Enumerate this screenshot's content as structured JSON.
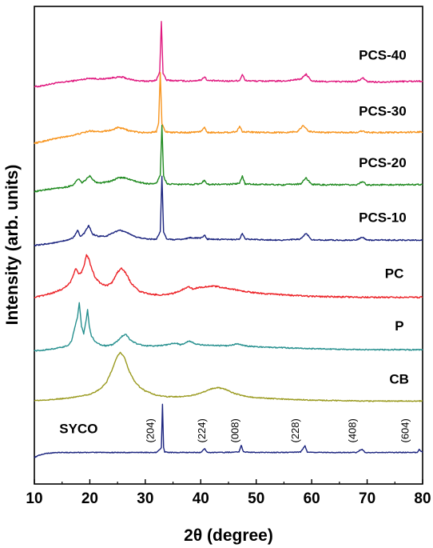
{
  "chart_data": {
    "type": "line",
    "title": "",
    "xlabel": "2θ (degree)",
    "ylabel": "Intensity (arb. units)",
    "xlim": [
      10,
      80
    ],
    "xticks": [
      10,
      20,
      30,
      40,
      50,
      60,
      70,
      80
    ],
    "y_ticks_labeled": false,
    "grid": false,
    "legend": "none",
    "series": [
      {
        "name": "PCS-40",
        "color": "#e0197f",
        "baseline": 7.6,
        "noise": 0.015,
        "x": [
          10,
          11,
          12,
          14,
          16,
          18,
          20,
          22,
          25,
          26,
          27,
          28,
          29,
          30,
          31,
          32,
          32.6,
          32.9,
          33.2,
          33.8,
          35,
          38,
          40,
          40.7,
          41.2,
          45,
          47,
          47.5,
          48,
          50,
          55,
          58,
          59,
          60,
          62,
          65,
          68,
          69.3,
          70,
          72,
          75,
          80
        ],
        "y": [
          7.45,
          7.45,
          7.48,
          7.52,
          7.55,
          7.58,
          7.62,
          7.6,
          7.64,
          7.64,
          7.6,
          7.58,
          7.56,
          7.56,
          7.56,
          7.58,
          7.75,
          8.8,
          7.72,
          7.58,
          7.57,
          7.56,
          7.58,
          7.65,
          7.57,
          7.56,
          7.57,
          7.7,
          7.57,
          7.56,
          7.56,
          7.6,
          7.7,
          7.56,
          7.55,
          7.55,
          7.55,
          7.62,
          7.55,
          7.54,
          7.55,
          7.56
        ]
      },
      {
        "name": "PCS-30",
        "color": "#f7941d",
        "baseline": 6.5,
        "noise": 0.015,
        "x": [
          10,
          11,
          12,
          14,
          16,
          18,
          20,
          22,
          24,
          25,
          26,
          27,
          28,
          29,
          30,
          31,
          32,
          32.4,
          32.7,
          33.0,
          33.6,
          35,
          38,
          40,
          40.7,
          41.2,
          45,
          46.5,
          47,
          47.5,
          50,
          55,
          57.5,
          58.5,
          59.5,
          62,
          65,
          68,
          69,
          70,
          72,
          75,
          80
        ],
        "y": [
          6.28,
          6.3,
          6.33,
          6.38,
          6.42,
          6.47,
          6.53,
          6.52,
          6.55,
          6.6,
          6.58,
          6.54,
          6.52,
          6.5,
          6.5,
          6.5,
          6.52,
          6.7,
          7.75,
          6.68,
          6.52,
          6.5,
          6.5,
          6.52,
          6.6,
          6.5,
          6.5,
          6.52,
          6.63,
          6.52,
          6.5,
          6.5,
          6.52,
          6.65,
          6.52,
          6.5,
          6.5,
          6.5,
          6.53,
          6.5,
          6.5,
          6.5,
          6.51
        ]
      },
      {
        "name": "PCS-20",
        "color": "#1f8a1f",
        "baseline": 5.4,
        "noise": 0.015,
        "x": [
          10,
          11,
          12,
          14,
          16,
          17,
          18,
          18.5,
          19,
          20,
          21,
          22,
          24,
          25,
          26,
          27,
          28,
          29,
          30,
          31,
          32,
          32.7,
          33.0,
          33.3,
          33.9,
          35,
          38,
          40,
          40.7,
          41.2,
          45,
          47,
          47.5,
          48,
          50,
          55,
          58,
          59,
          60,
          62,
          65,
          68,
          69.2,
          70,
          72,
          75,
          80
        ],
        "y": [
          5.28,
          5.3,
          5.32,
          5.35,
          5.38,
          5.42,
          5.55,
          5.46,
          5.5,
          5.6,
          5.48,
          5.46,
          5.5,
          5.56,
          5.57,
          5.54,
          5.5,
          5.47,
          5.45,
          5.44,
          5.45,
          5.62,
          6.65,
          5.6,
          5.44,
          5.43,
          5.43,
          5.44,
          5.52,
          5.43,
          5.43,
          5.45,
          5.6,
          5.44,
          5.43,
          5.42,
          5.44,
          5.56,
          5.43,
          5.42,
          5.42,
          5.42,
          5.48,
          5.42,
          5.42,
          5.42,
          5.43
        ]
      },
      {
        "name": "PCS-10",
        "color": "#1a237e",
        "baseline": 4.3,
        "noise": 0.012,
        "x": [
          10,
          11,
          12,
          14,
          16,
          17,
          17.8,
          18.3,
          19,
          19.8,
          20.5,
          21.5,
          23,
          24.5,
          25.5,
          26.5,
          27.5,
          28.5,
          30,
          31,
          32,
          32.7,
          33.0,
          33.3,
          33.9,
          35,
          37,
          38,
          40,
          40.7,
          41.2,
          45,
          47,
          47.5,
          48,
          50,
          55,
          58,
          59,
          60,
          62,
          65,
          68,
          69.2,
          70,
          72,
          75,
          80
        ],
        "y": [
          4.17,
          4.18,
          4.2,
          4.23,
          4.28,
          4.33,
          4.48,
          4.36,
          4.42,
          4.58,
          4.4,
          4.36,
          4.36,
          4.45,
          4.48,
          4.45,
          4.38,
          4.34,
          4.31,
          4.3,
          4.3,
          4.45,
          5.6,
          4.44,
          4.3,
          4.29,
          4.3,
          4.33,
          4.32,
          4.38,
          4.3,
          4.29,
          4.3,
          4.42,
          4.3,
          4.29,
          4.28,
          4.3,
          4.42,
          4.29,
          4.28,
          4.28,
          4.28,
          4.34,
          4.28,
          4.28,
          4.28,
          4.28
        ]
      },
      {
        "name": "PC",
        "color": "#ec2227",
        "baseline": 3.2,
        "noise": 0.015,
        "x": [
          10,
          11,
          12,
          13,
          14,
          15,
          16,
          16.5,
          17,
          17.5,
          18.0,
          18.5,
          19,
          19.4,
          19.8,
          20.3,
          21,
          22,
          23,
          24,
          25,
          25.7,
          26.5,
          27.5,
          29,
          31,
          33,
          35,
          36,
          37,
          37.8,
          38.6,
          39.5,
          41,
          42,
          43,
          44,
          46,
          48,
          50,
          52,
          55,
          60,
          65,
          70,
          75,
          80
        ],
        "y": [
          3.1,
          3.12,
          3.15,
          3.18,
          3.22,
          3.27,
          3.35,
          3.42,
          3.55,
          3.7,
          3.58,
          3.62,
          3.78,
          3.98,
          3.9,
          3.7,
          3.5,
          3.38,
          3.34,
          3.4,
          3.62,
          3.7,
          3.6,
          3.38,
          3.22,
          3.16,
          3.15,
          3.18,
          3.22,
          3.28,
          3.32,
          3.27,
          3.3,
          3.32,
          3.33,
          3.32,
          3.3,
          3.26,
          3.22,
          3.19,
          3.17,
          3.15,
          3.12,
          3.11,
          3.1,
          3.1,
          3.1
        ]
      },
      {
        "name": "P",
        "color": "#27908f",
        "baseline": 2.1,
        "noise": 0.012,
        "x": [
          10,
          11,
          12,
          13,
          14,
          15,
          16,
          16.7,
          17.3,
          17.8,
          18.1,
          18.5,
          18.9,
          19.3,
          19.6,
          19.9,
          20.3,
          21,
          22,
          23,
          24,
          25,
          25.8,
          26.5,
          27.3,
          28.5,
          30,
          32,
          34,
          35.5,
          36.3,
          37,
          37.8,
          38.3,
          39,
          40,
          42,
          45,
          46.5,
          48,
          50,
          55,
          60,
          65,
          70,
          75,
          80
        ],
        "y": [
          2.0,
          2.0,
          2.02,
          2.03,
          2.05,
          2.07,
          2.1,
          2.2,
          2.48,
          2.7,
          3.0,
          2.5,
          2.35,
          2.6,
          2.85,
          2.5,
          2.3,
          2.18,
          2.12,
          2.1,
          2.12,
          2.2,
          2.3,
          2.34,
          2.22,
          2.14,
          2.1,
          2.1,
          2.12,
          2.16,
          2.12,
          2.15,
          2.2,
          2.18,
          2.14,
          2.12,
          2.11,
          2.1,
          2.14,
          2.1,
          2.08,
          2.06,
          2.04,
          2.03,
          2.02,
          2.02,
          2.02
        ]
      },
      {
        "name": "CB",
        "color": "#9a9a1f",
        "baseline": 1.0,
        "noise": 0.01,
        "x": [
          10,
          12,
          14,
          16,
          18,
          20,
          21,
          22,
          23,
          24,
          24.8,
          25.5,
          26.3,
          27,
          28,
          29,
          30,
          32,
          34,
          36,
          38,
          40,
          41.5,
          43,
          44.5,
          46,
          48,
          50,
          55,
          60,
          65,
          70,
          75,
          80
        ],
        "y": [
          0.97,
          0.98,
          1.0,
          1.02,
          1.06,
          1.1,
          1.15,
          1.22,
          1.35,
          1.6,
          1.85,
          1.97,
          1.85,
          1.6,
          1.38,
          1.25,
          1.17,
          1.08,
          1.05,
          1.05,
          1.07,
          1.12,
          1.2,
          1.24,
          1.2,
          1.12,
          1.06,
          1.03,
          1.0,
          0.98,
          0.97,
          0.96,
          0.96,
          0.96
        ]
      },
      {
        "name": "SYCO",
        "color": "#1a237e",
        "baseline": -0.1,
        "noise": 0.008,
        "x": [
          10,
          11,
          12,
          14,
          16,
          20,
          25,
          30,
          32,
          32.9,
          33.1,
          33.3,
          33.5,
          34.2,
          36,
          38,
          40,
          40.7,
          41.2,
          44,
          46.9,
          47.3,
          47.7,
          50,
          55,
          58,
          58.8,
          59.2,
          60,
          62,
          65,
          68,
          69.1,
          69.6,
          72,
          75,
          79,
          79.4,
          80
        ],
        "y": [
          -0.2,
          -0.15,
          -0.12,
          -0.1,
          -0.1,
          -0.1,
          -0.1,
          -0.1,
          -0.1,
          0.0,
          0.9,
          0.0,
          -0.09,
          -0.1,
          -0.1,
          -0.1,
          -0.1,
          -0.02,
          -0.1,
          -0.1,
          -0.09,
          0.05,
          -0.09,
          -0.1,
          -0.1,
          -0.09,
          0.04,
          -0.09,
          -0.1,
          -0.1,
          -0.1,
          -0.1,
          -0.03,
          -0.1,
          -0.1,
          -0.1,
          -0.1,
          -0.04,
          -0.1
        ]
      }
    ],
    "series_labels": [
      {
        "text": "PCS-40",
        "at_x": 68.5,
        "at_y": 8.0
      },
      {
        "text": "PCS-30",
        "at_x": 68.5,
        "at_y": 6.85
      },
      {
        "text": "PCS-20",
        "at_x": 68.5,
        "at_y": 5.78
      },
      {
        "text": "PCS-10",
        "at_x": 68.5,
        "at_y": 4.65
      },
      {
        "text": "PC",
        "at_x": 73.2,
        "at_y": 3.5
      },
      {
        "text": "P",
        "at_x": 75.0,
        "at_y": 2.42
      },
      {
        "text": "CB",
        "at_x": 74.0,
        "at_y": 1.32
      },
      {
        "text": "SYCO",
        "at_x": 14.5,
        "at_y": 0.3
      }
    ],
    "peak_annotations": [
      {
        "text": "(204)",
        "x": 31.5
      },
      {
        "text": "(224)",
        "x": 40.8
      },
      {
        "text": "(008)",
        "x": 46.8
      },
      {
        "text": "(228)",
        "x": 57.7
      },
      {
        "text": "(408)",
        "x": 68.0
      },
      {
        "text": "(604)",
        "x": 77.5
      }
    ]
  }
}
